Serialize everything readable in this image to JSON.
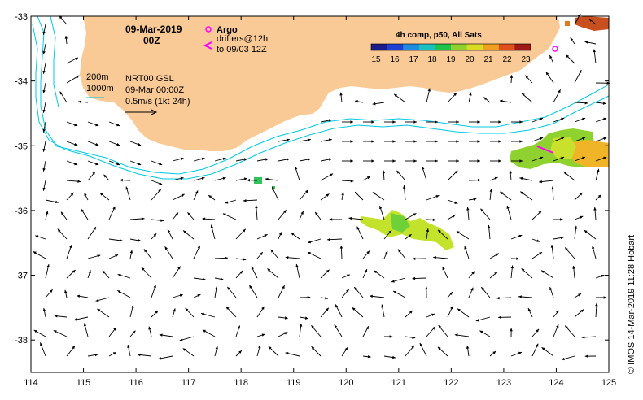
{
  "map": {
    "date": "09-Mar-2019",
    "hour": "00Z",
    "argo_label": "Argo",
    "drifters_line1": "drifters@12h",
    "drifters_line2": "to 09/03 12Z",
    "isobath_200": "200m",
    "isobath_1000": "1000m",
    "product": "NRT00 GSL",
    "product_time": "09-Mar 00:00Z",
    "scale_label": "0.5m/s (1kt 24h)",
    "credit": "© IMOS 14-Mar-2019 11:28 Hobart",
    "colors": {
      "land": "#f9c996",
      "isobath": "#00c8e6",
      "argo": "#ff00ff",
      "drifters": "#ff00ff"
    }
  },
  "colorbar": {
    "title": "4h comp, p50, All Sats",
    "ticks": [
      "15",
      "16",
      "17",
      "18",
      "19",
      "20",
      "21",
      "22",
      "23"
    ]
  },
  "axes": {
    "x_ticks": [
      "114",
      "115",
      "116",
      "117",
      "118",
      "119",
      "120",
      "121",
      "122",
      "123",
      "124",
      "125"
    ],
    "y_ticks": [
      "-33",
      "-34",
      "-35",
      "-36",
      "-37",
      "-38"
    ]
  }
}
